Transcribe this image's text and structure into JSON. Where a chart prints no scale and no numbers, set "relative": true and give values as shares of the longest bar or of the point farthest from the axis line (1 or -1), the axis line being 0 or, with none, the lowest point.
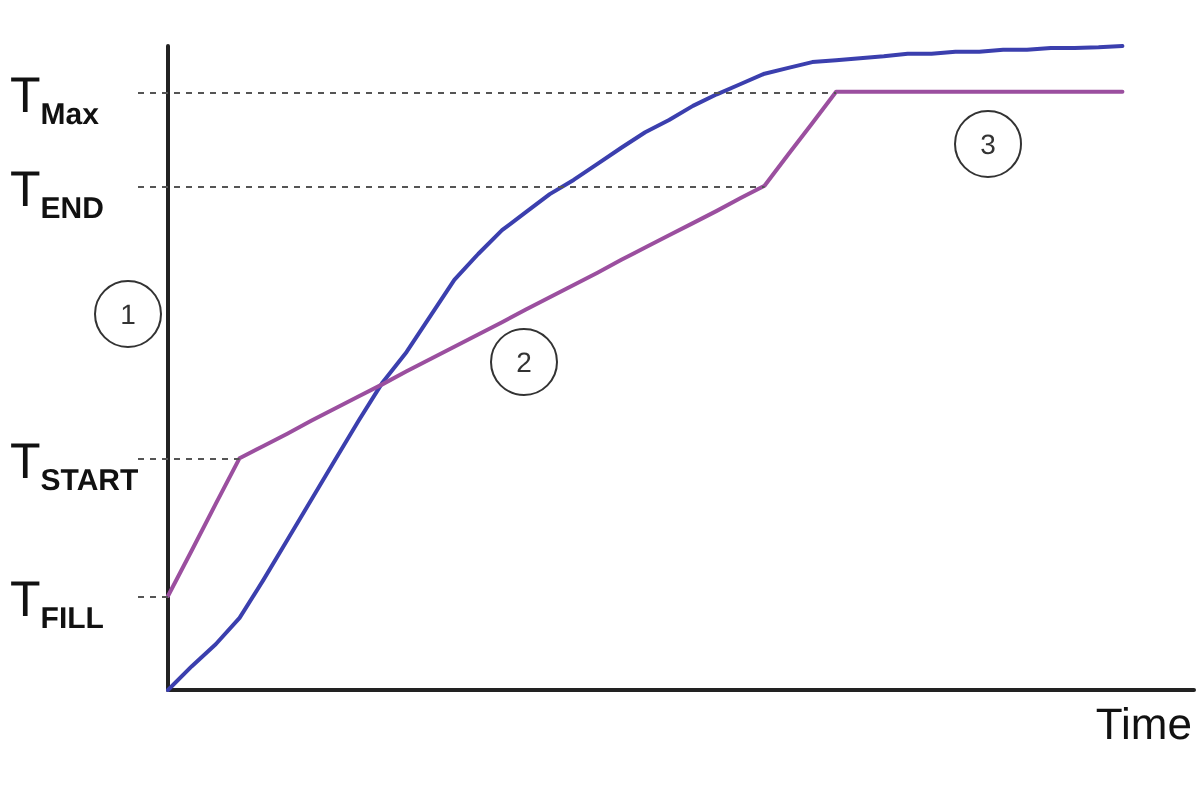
{
  "chart_data": {
    "type": "line",
    "relative": true,
    "xlabel": "Time",
    "marker": "none",
    "categories": [
      null,
      null,
      null,
      null,
      null,
      null,
      null,
      null,
      null,
      null,
      null,
      null,
      null,
      null,
      null,
      null,
      null,
      null,
      null,
      null,
      null,
      null,
      null,
      null,
      null,
      null,
      null,
      null,
      null,
      null,
      null,
      null,
      null,
      null,
      null,
      null,
      null,
      null,
      null,
      null,
      null,
      null,
      null,
      null
    ],
    "series": [
      {
        "color": "#3b3fae",
        "values": [
          0,
          0.037,
          0.071,
          0.112,
          0.171,
          0.233,
          0.295,
          0.357,
          0.419,
          0.478,
          0.525,
          0.581,
          0.637,
          0.677,
          0.714,
          0.742,
          0.77,
          0.792,
          0.817,
          0.842,
          0.866,
          0.885,
          0.907,
          0.925,
          0.941,
          0.957,
          0.966,
          0.975,
          0.978,
          0.981,
          0.984,
          0.988,
          0.988,
          0.991,
          0.991,
          0.994,
          0.994,
          0.997,
          0.997,
          0.998,
          1,
          null,
          null,
          null
        ]
      },
      {
        "color": "#9b4f9f",
        "values": [
          0.146,
          0.217,
          0.289,
          0.36,
          0.379,
          0.398,
          0.418,
          0.437,
          0.456,
          0.475,
          0.495,
          0.514,
          0.533,
          0.552,
          0.571,
          0.591,
          0.61,
          0.629,
          0.648,
          0.668,
          0.687,
          0.706,
          0.725,
          0.744,
          0.764,
          0.783,
          0.832,
          0.88,
          0.929,
          0.929,
          0.929,
          0.929,
          0.929,
          0.929,
          0.929,
          0.929,
          0.929,
          0.929,
          0.929,
          0.929,
          0.929,
          null,
          null,
          null
        ]
      }
    ],
    "ref_lines": [
      {
        "axis": "y",
        "value": 0.929,
        "label": "T$_{Max}$",
        "color": "#555555",
        "line_style": "dashed"
      },
      {
        "axis": "y",
        "value": 0.783,
        "label": "T$_{END}$",
        "color": "#555555",
        "line_style": "dashed"
      },
      {
        "axis": "y",
        "value": 0.36,
        "label": "T$_{START}$",
        "color": "#555555",
        "line_style": "dashed"
      },
      {
        "axis": "y",
        "value": 0.146,
        "label": "T$_{FILL}$",
        "color": "#555555",
        "line_style": "dashed"
      }
    ],
    "annotations": [
      "1",
      "2",
      "3"
    ]
  }
}
